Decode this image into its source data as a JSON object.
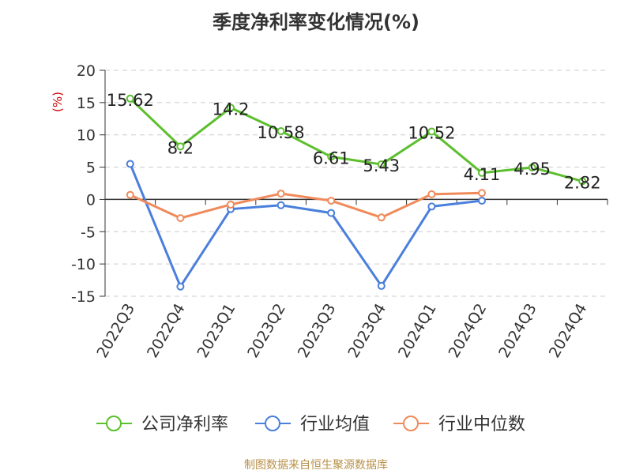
{
  "chart_data": {
    "type": "line",
    "title": "季度净利率变化情况(%)",
    "ylabel": "(%)",
    "xlabel": "",
    "ylim": [
      -15,
      20
    ],
    "yticks": [
      -15,
      -10,
      -5,
      0,
      5,
      10,
      15,
      20
    ],
    "categories": [
      "2022Q3",
      "2022Q4",
      "2023Q1",
      "2023Q2",
      "2023Q3",
      "2023Q4",
      "2024Q1",
      "2024Q2",
      "2024Q3",
      "2024Q4"
    ],
    "grid": "horizontal dashed",
    "legend_position": "bottom",
    "series": [
      {
        "name": "公司净利率",
        "color": "#5cbf2e",
        "values": [
          15.62,
          8.2,
          14.2,
          10.58,
          6.61,
          5.43,
          10.52,
          4.11,
          4.95,
          2.82
        ],
        "labels": [
          "15.62",
          "8.2",
          "14.2",
          "10.58",
          "6.61",
          "5.43",
          "10.52",
          "4.11",
          "4.95",
          "2.82"
        ]
      },
      {
        "name": "行业均值",
        "color": "#4a7fdc",
        "values": [
          5.5,
          -13.5,
          -1.5,
          -0.9,
          -2.1,
          -13.4,
          -1.1,
          -0.2,
          null,
          null
        ]
      },
      {
        "name": "行业中位数",
        "color": "#f08a5a",
        "values": [
          0.7,
          -2.9,
          -0.8,
          0.9,
          -0.2,
          -2.8,
          0.8,
          1.0,
          null,
          null
        ]
      }
    ]
  },
  "footer": {
    "source": "制图数据来自恒生聚源数据库"
  }
}
